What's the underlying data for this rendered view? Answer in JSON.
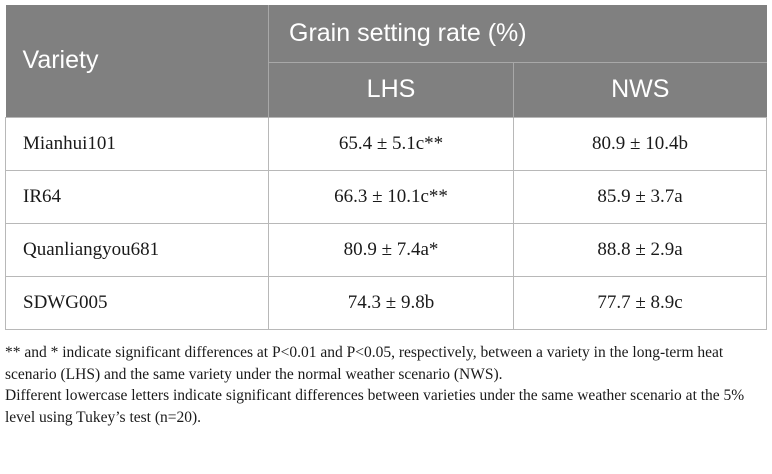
{
  "table": {
    "header": {
      "variety_label": "Variety",
      "group_label": "Grain setting rate (%)",
      "col_lhs": "LHS",
      "col_nws": "NWS"
    },
    "rows": [
      {
        "variety": "Mianhui101",
        "lhs": "65.4 ± 5.1c**",
        "nws": "80.9 ± 10.4b"
      },
      {
        "variety": "IR64",
        "lhs": "66.3 ± 10.1c**",
        "nws": "85.9 ± 3.7a"
      },
      {
        "variety": "Quanliangyou681",
        "lhs": "80.9 ± 7.4a*",
        "nws": "88.8 ± 2.9a"
      },
      {
        "variety": "SDWG005",
        "lhs": "74.3 ± 9.8b",
        "nws": "77.7 ± 8.9c"
      }
    ]
  },
  "notes": {
    "significance": "** and * indicate significant differences at P<0.01 and P<0.05, respectively, between a variety in the long-term heat scenario (LHS) and the same variety under the normal weather scenario (NWS).",
    "letters": "Different lowercase letters indicate significant differences between varieties under the same weather scenario at the 5% level using Tukey’s test (n=20)."
  },
  "colors": {
    "header_bg": "#808080",
    "header_text": "#ffffff",
    "grid_line": "#b8b8b8",
    "body_text": "#1a1a1a"
  }
}
